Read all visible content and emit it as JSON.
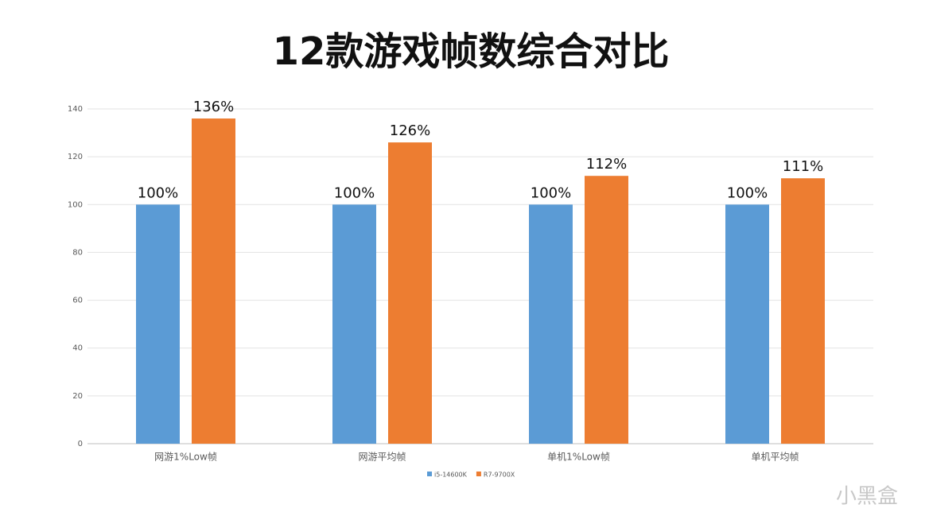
{
  "chart_data": {
    "type": "bar",
    "title": "12款游戏帧数综合对比",
    "categories": [
      "网游1%Low帧",
      "网游平均帧",
      "单机1%Low帧",
      "单机平均帧"
    ],
    "series": [
      {
        "name": "i5-14600K",
        "color": "#5b9bd5",
        "values": [
          100,
          100,
          100,
          100
        ],
        "value_labels": [
          "100%",
          "100%",
          "100%",
          "100%"
        ]
      },
      {
        "name": "R7-9700X",
        "color": "#ed7d31",
        "values": [
          136,
          126,
          112,
          111
        ],
        "value_labels": [
          "136%",
          "126%",
          "112%",
          "111%"
        ]
      }
    ],
    "ylim": [
      0,
      140
    ],
    "yticks": [
      0,
      20,
      40,
      60,
      80,
      100,
      120,
      140
    ],
    "grid": true,
    "legend": "bottom"
  },
  "watermark": "小黑盒"
}
